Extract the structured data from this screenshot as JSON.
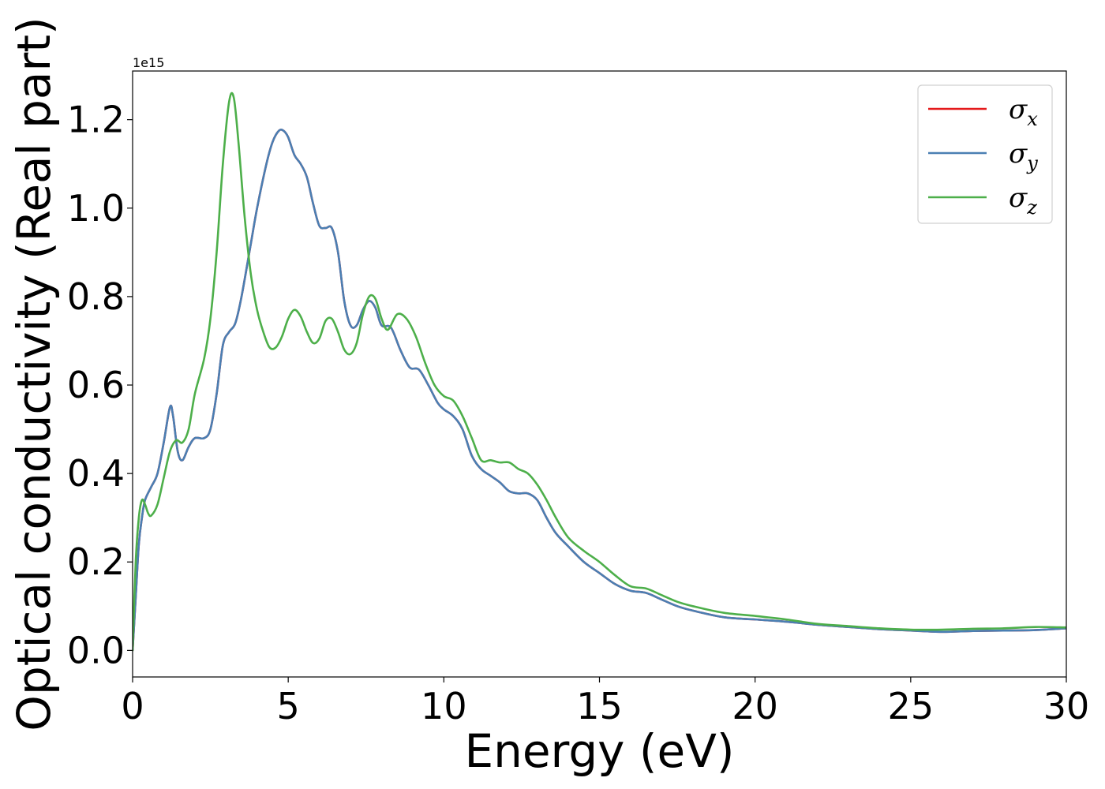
{
  "chart_data": {
    "type": "line",
    "xlabel": "Energy (eV)",
    "ylabel": "Optical conductivity (Real part)",
    "y_offset_text": "1e15",
    "xlim": [
      0,
      30
    ],
    "ylim": [
      -0.06,
      1.31
    ],
    "x_ticks": [
      0,
      5,
      10,
      15,
      20,
      25,
      30
    ],
    "x_tick_labels": [
      "0",
      "5",
      "10",
      "15",
      "20",
      "25",
      "30"
    ],
    "y_ticks": [
      0.0,
      0.2,
      0.4,
      0.6,
      0.8,
      1.0,
      1.2
    ],
    "y_tick_labels": [
      "0.0",
      "0.2",
      "0.4",
      "0.6",
      "0.8",
      "1.0",
      "1.2"
    ],
    "grid": false,
    "legend_position": "top-right",
    "series": [
      {
        "name": "σ",
        "subscript": "x",
        "color": "#e41a1c",
        "x": [
          0,
          0.1,
          0.2,
          0.3,
          0.4,
          0.6,
          0.8,
          1.0,
          1.2,
          1.3,
          1.45,
          1.6,
          1.8,
          2.0,
          2.3,
          2.5,
          2.7,
          2.9,
          3.1,
          3.3,
          3.5,
          3.8,
          4.0,
          4.3,
          4.5,
          4.7,
          4.85,
          5.0,
          5.2,
          5.4,
          5.6,
          5.8,
          6.0,
          6.2,
          6.4,
          6.6,
          6.8,
          7.0,
          7.2,
          7.4,
          7.6,
          7.8,
          8.0,
          8.3,
          8.6,
          8.9,
          9.2,
          9.5,
          9.8,
          10.0,
          10.3,
          10.6,
          10.9,
          11.2,
          11.5,
          11.8,
          12.1,
          12.4,
          12.7,
          13.0,
          13.3,
          13.6,
          14.0,
          14.5,
          15.0,
          15.5,
          16.0,
          16.5,
          17.0,
          17.5,
          18.0,
          19.0,
          20.0,
          21.0,
          22.0,
          23.0,
          24.0,
          25.0,
          26.0,
          27.0,
          28.0,
          29.0,
          30.0
        ],
        "values": [
          0.0,
          0.12,
          0.24,
          0.3,
          0.34,
          0.37,
          0.4,
          0.47,
          0.55,
          0.53,
          0.45,
          0.43,
          0.46,
          0.48,
          0.48,
          0.5,
          0.58,
          0.69,
          0.72,
          0.74,
          0.8,
          0.92,
          1.0,
          1.1,
          1.15,
          1.175,
          1.175,
          1.16,
          1.12,
          1.1,
          1.07,
          1.01,
          0.96,
          0.955,
          0.955,
          0.9,
          0.79,
          0.735,
          0.735,
          0.77,
          0.79,
          0.775,
          0.735,
          0.73,
          0.68,
          0.64,
          0.635,
          0.6,
          0.56,
          0.545,
          0.53,
          0.5,
          0.44,
          0.41,
          0.395,
          0.38,
          0.36,
          0.355,
          0.355,
          0.34,
          0.3,
          0.265,
          0.235,
          0.2,
          0.175,
          0.15,
          0.135,
          0.13,
          0.115,
          0.1,
          0.09,
          0.075,
          0.07,
          0.065,
          0.058,
          0.053,
          0.048,
          0.045,
          0.042,
          0.044,
          0.045,
          0.046,
          0.05
        ]
      },
      {
        "name": "σ",
        "subscript": "y",
        "color": "#4a7fb3",
        "x": [
          0,
          0.1,
          0.2,
          0.3,
          0.4,
          0.6,
          0.8,
          1.0,
          1.2,
          1.3,
          1.45,
          1.6,
          1.8,
          2.0,
          2.3,
          2.5,
          2.7,
          2.9,
          3.1,
          3.3,
          3.5,
          3.8,
          4.0,
          4.3,
          4.5,
          4.7,
          4.85,
          5.0,
          5.2,
          5.4,
          5.6,
          5.8,
          6.0,
          6.2,
          6.4,
          6.6,
          6.8,
          7.0,
          7.2,
          7.4,
          7.6,
          7.8,
          8.0,
          8.3,
          8.6,
          8.9,
          9.2,
          9.5,
          9.8,
          10.0,
          10.3,
          10.6,
          10.9,
          11.2,
          11.5,
          11.8,
          12.1,
          12.4,
          12.7,
          13.0,
          13.3,
          13.6,
          14.0,
          14.5,
          15.0,
          15.5,
          16.0,
          16.5,
          17.0,
          17.5,
          18.0,
          19.0,
          20.0,
          21.0,
          22.0,
          23.0,
          24.0,
          25.0,
          26.0,
          27.0,
          28.0,
          29.0,
          30.0
        ],
        "values": [
          0.0,
          0.12,
          0.24,
          0.3,
          0.34,
          0.37,
          0.4,
          0.47,
          0.55,
          0.53,
          0.45,
          0.43,
          0.46,
          0.48,
          0.48,
          0.5,
          0.58,
          0.69,
          0.72,
          0.74,
          0.8,
          0.92,
          1.0,
          1.1,
          1.15,
          1.175,
          1.175,
          1.16,
          1.12,
          1.1,
          1.07,
          1.01,
          0.96,
          0.955,
          0.955,
          0.9,
          0.79,
          0.735,
          0.735,
          0.77,
          0.79,
          0.775,
          0.735,
          0.73,
          0.68,
          0.64,
          0.635,
          0.6,
          0.56,
          0.545,
          0.53,
          0.5,
          0.44,
          0.41,
          0.395,
          0.38,
          0.36,
          0.355,
          0.355,
          0.34,
          0.3,
          0.265,
          0.235,
          0.2,
          0.175,
          0.15,
          0.135,
          0.13,
          0.115,
          0.1,
          0.09,
          0.075,
          0.07,
          0.065,
          0.058,
          0.053,
          0.048,
          0.045,
          0.042,
          0.044,
          0.045,
          0.046,
          0.05
        ]
      },
      {
        "name": "σ",
        "subscript": "z",
        "color": "#4daf4a",
        "x": [
          0,
          0.1,
          0.2,
          0.3,
          0.4,
          0.5,
          0.6,
          0.8,
          1.0,
          1.2,
          1.4,
          1.6,
          1.8,
          2.0,
          2.3,
          2.5,
          2.7,
          2.9,
          3.1,
          3.25,
          3.4,
          3.6,
          3.8,
          4.0,
          4.2,
          4.4,
          4.6,
          4.8,
          5.0,
          5.2,
          5.4,
          5.6,
          5.8,
          6.0,
          6.2,
          6.4,
          6.6,
          6.8,
          7.0,
          7.2,
          7.4,
          7.6,
          7.8,
          8.0,
          8.2,
          8.5,
          8.8,
          9.1,
          9.4,
          9.7,
          10.0,
          10.3,
          10.6,
          10.9,
          11.2,
          11.5,
          11.8,
          12.1,
          12.4,
          12.7,
          13.0,
          13.3,
          13.6,
          14.0,
          14.5,
          15.0,
          15.5,
          16.0,
          16.5,
          17.0,
          17.5,
          18.0,
          19.0,
          20.0,
          21.0,
          22.0,
          23.0,
          24.0,
          25.0,
          26.0,
          27.0,
          28.0,
          29.0,
          30.0
        ],
        "values": [
          0.0,
          0.2,
          0.3,
          0.34,
          0.33,
          0.31,
          0.305,
          0.33,
          0.39,
          0.45,
          0.475,
          0.47,
          0.5,
          0.58,
          0.66,
          0.75,
          0.9,
          1.1,
          1.24,
          1.25,
          1.15,
          0.98,
          0.85,
          0.77,
          0.72,
          0.685,
          0.685,
          0.71,
          0.75,
          0.77,
          0.755,
          0.72,
          0.695,
          0.705,
          0.745,
          0.75,
          0.72,
          0.68,
          0.67,
          0.695,
          0.76,
          0.8,
          0.795,
          0.75,
          0.725,
          0.76,
          0.75,
          0.71,
          0.65,
          0.6,
          0.575,
          0.565,
          0.53,
          0.48,
          0.43,
          0.43,
          0.425,
          0.425,
          0.41,
          0.4,
          0.375,
          0.34,
          0.3,
          0.255,
          0.225,
          0.2,
          0.17,
          0.145,
          0.14,
          0.125,
          0.11,
          0.1,
          0.085,
          0.078,
          0.07,
          0.06,
          0.055,
          0.05,
          0.047,
          0.047,
          0.049,
          0.05,
          0.053,
          0.052
        ]
      }
    ]
  }
}
